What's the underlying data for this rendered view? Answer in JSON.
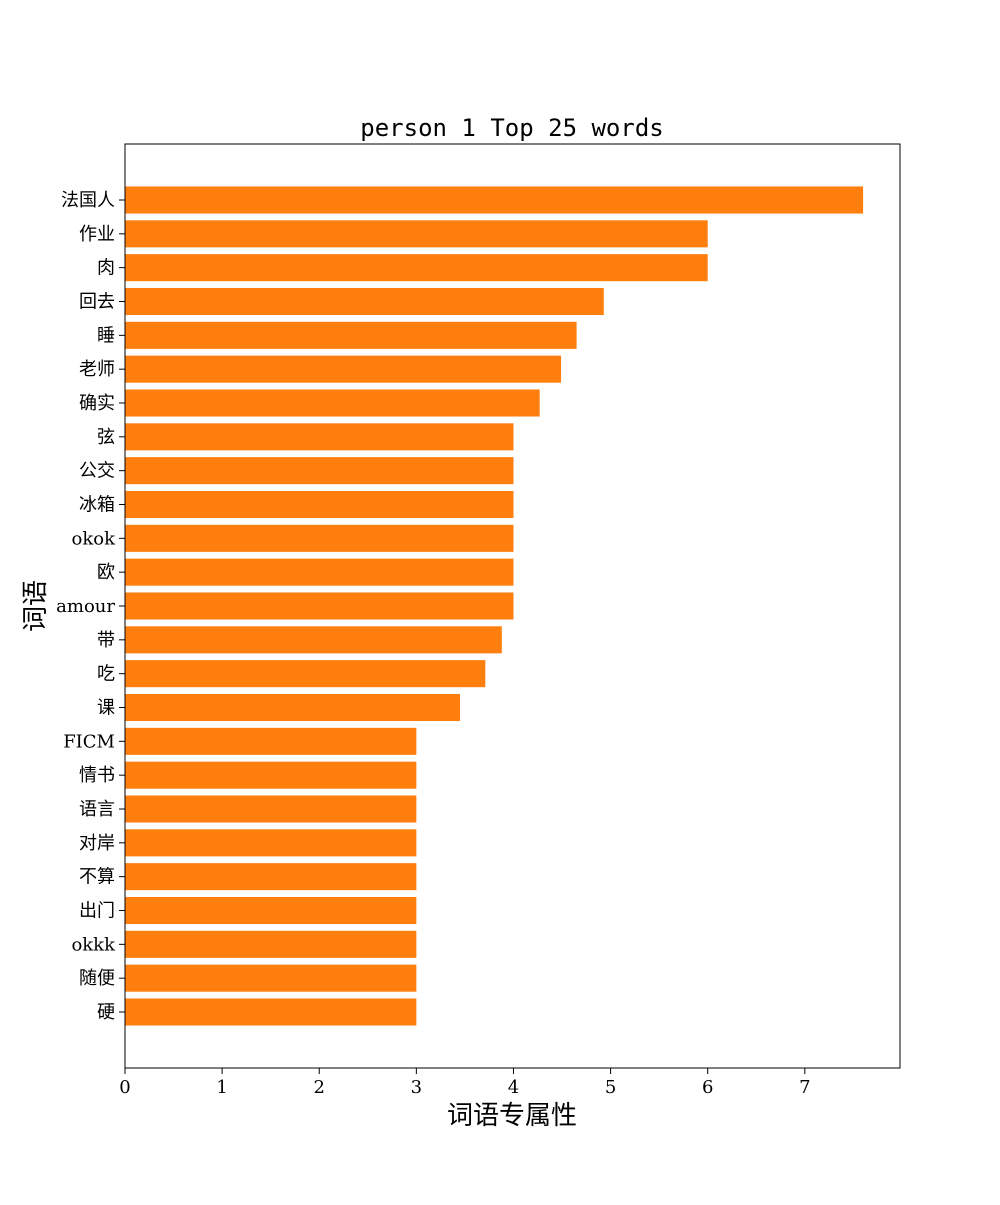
{
  "chart_data": {
    "type": "bar",
    "orientation": "horizontal",
    "title": "person 1 Top 25 words",
    "xlabel": "词语专属性",
    "ylabel": "词语",
    "categories": [
      "法国人",
      "作业",
      "肉",
      "回去",
      "睡",
      "老师",
      "确实",
      "弦",
      "公交",
      "冰箱",
      "okok",
      "欧",
      "amour",
      "带",
      "吃",
      "课",
      "FICM",
      "情书",
      "语言",
      "对岸",
      "不算",
      "出门",
      "okkk",
      "随便",
      "硬"
    ],
    "values": [
      7.6,
      6.0,
      6.0,
      4.93,
      4.65,
      4.49,
      4.27,
      4.0,
      4.0,
      4.0,
      4.0,
      4.0,
      4.0,
      3.88,
      3.71,
      3.45,
      3.0,
      3.0,
      3.0,
      3.0,
      3.0,
      3.0,
      3.0,
      3.0,
      3.0
    ],
    "xlim": [
      0,
      7.98
    ],
    "xticks": [
      "0",
      "1",
      "2",
      "3",
      "4",
      "5",
      "6",
      "7"
    ],
    "bar_color": "#ff7f0e",
    "grid": false,
    "legend": "none"
  }
}
